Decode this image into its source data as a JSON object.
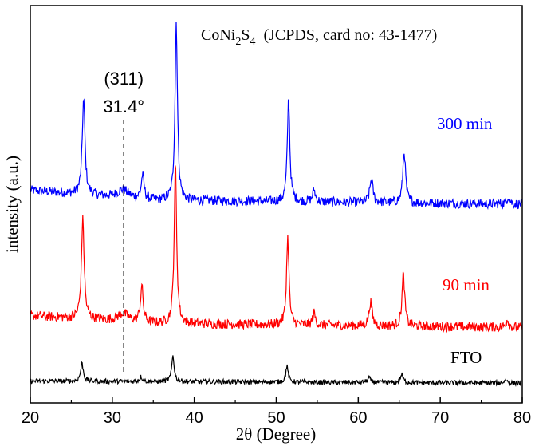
{
  "chart_data": {
    "type": "line",
    "xlabel": "2θ (Degree)",
    "ylabel": "intensity (a.u.)",
    "xlim": [
      20,
      80
    ],
    "x_ticks": [
      20,
      30,
      40,
      50,
      60,
      70,
      80
    ],
    "y_ticks_shown": false,
    "grid": false,
    "annotation_title": {
      "prefix": "CoNi",
      "sub1": "2",
      "mid": "S",
      "sub2": "4",
      "suffix": "  (JCPDS, card no: 43-1477)"
    },
    "reference_line": {
      "x": 31.4,
      "label_hkl": "(311)",
      "label_angle": "31.4°"
    },
    "series": [
      {
        "name": "300 min",
        "color": "#0000ff",
        "baseline": 0.5,
        "noise": 0.012,
        "background": [
          {
            "x": 20,
            "y": 0.035
          },
          {
            "x": 35,
            "y": 0.01
          },
          {
            "x": 80,
            "y": 0.0
          }
        ],
        "peaks": [
          {
            "x": 26.5,
            "h": 0.24,
            "w": 0.2
          },
          {
            "x": 31.3,
            "h": 0.02,
            "w": 0.8
          },
          {
            "x": 33.7,
            "h": 0.06,
            "w": 0.2
          },
          {
            "x": 37.8,
            "h": 0.45,
            "w": 0.18
          },
          {
            "x": 51.5,
            "h": 0.26,
            "w": 0.18
          },
          {
            "x": 54.6,
            "h": 0.03,
            "w": 0.2
          },
          {
            "x": 61.6,
            "h": 0.06,
            "w": 0.22
          },
          {
            "x": 65.6,
            "h": 0.13,
            "w": 0.2
          },
          {
            "x": 78.3,
            "h": 0.02,
            "w": 0.2
          }
        ]
      },
      {
        "name": "90 min",
        "color": "#ff0000",
        "baseline": 0.19,
        "noise": 0.012,
        "background": [
          {
            "x": 20,
            "y": 0.03
          },
          {
            "x": 35,
            "y": 0.01
          },
          {
            "x": 80,
            "y": 0.0
          }
        ],
        "peaks": [
          {
            "x": 26.4,
            "h": 0.25,
            "w": 0.2
          },
          {
            "x": 31.3,
            "h": 0.02,
            "w": 0.8
          },
          {
            "x": 33.6,
            "h": 0.09,
            "w": 0.2
          },
          {
            "x": 37.7,
            "h": 0.4,
            "w": 0.18
          },
          {
            "x": 51.4,
            "h": 0.22,
            "w": 0.18
          },
          {
            "x": 54.6,
            "h": 0.03,
            "w": 0.2
          },
          {
            "x": 61.5,
            "h": 0.06,
            "w": 0.22
          },
          {
            "x": 65.5,
            "h": 0.13,
            "w": 0.2
          },
          {
            "x": 78.2,
            "h": 0.02,
            "w": 0.2
          }
        ]
      },
      {
        "name": "FTO",
        "color": "#000000",
        "baseline": 0.05,
        "noise": 0.006,
        "background": [
          {
            "x": 20,
            "y": 0.005
          },
          {
            "x": 80,
            "y": 0.0
          }
        ],
        "peaks": [
          {
            "x": 26.3,
            "h": 0.045,
            "w": 0.2
          },
          {
            "x": 33.5,
            "h": 0.012,
            "w": 0.2
          },
          {
            "x": 37.4,
            "h": 0.065,
            "w": 0.18
          },
          {
            "x": 51.3,
            "h": 0.04,
            "w": 0.18
          },
          {
            "x": 61.3,
            "h": 0.012,
            "w": 0.2
          },
          {
            "x": 65.3,
            "h": 0.02,
            "w": 0.2
          },
          {
            "x": 78.0,
            "h": 0.008,
            "w": 0.2
          }
        ]
      }
    ]
  }
}
